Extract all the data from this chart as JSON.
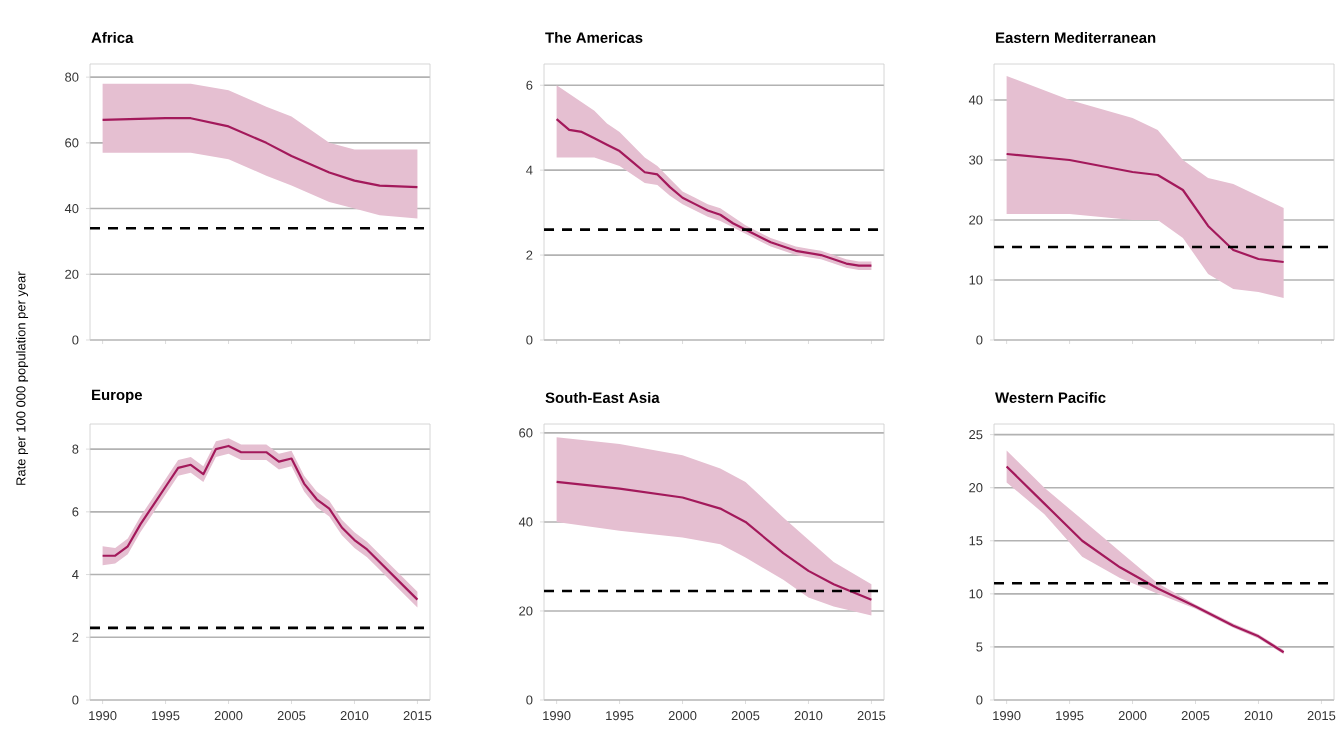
{
  "chart_data": [
    {
      "type": "line",
      "title": "Africa",
      "ylabel": "Rate per 100 000 population per year",
      "xlim": [
        1989,
        2016
      ],
      "xticks": [
        1990,
        1995,
        2000,
        2005,
        2010,
        2015
      ],
      "ylim": [
        0,
        84
      ],
      "yticks": [
        0,
        20,
        40,
        60,
        80
      ],
      "grid": "y",
      "tick_labels": "y",
      "series": [
        {
          "color": "#a3195b",
          "x": [
            1990,
            1995,
            1997,
            2000,
            2003,
            2005,
            2008,
            2010,
            2012,
            2015
          ],
          "values": [
            67,
            67.5,
            67.5,
            65,
            60,
            56,
            51,
            48.5,
            47,
            46.5
          ],
          "lower": [
            57,
            57,
            57,
            55,
            50,
            47,
            42,
            40,
            38,
            37
          ],
          "upper": [
            78,
            78,
            78,
            76,
            71,
            68,
            60,
            58,
            58,
            58
          ]
        }
      ],
      "ref_lines": [
        {
          "axis": "y",
          "value": 34,
          "color": "#000000",
          "line_style": "dashed"
        }
      ]
    },
    {
      "type": "line",
      "title": "The Americas",
      "xlim": [
        1989,
        2016
      ],
      "xticks": [
        1990,
        1995,
        2000,
        2005,
        2010,
        2015
      ],
      "ylim": [
        0,
        6.5
      ],
      "yticks": [
        0,
        2,
        4,
        6
      ],
      "grid": "y",
      "tick_labels": "y",
      "series": [
        {
          "color": "#a3195b",
          "x": [
            1990,
            1991,
            1992,
            1993,
            1994,
            1995,
            1996,
            1997,
            1998,
            1999,
            2000,
            2001,
            2002,
            2003,
            2004,
            2005,
            2006,
            2007,
            2008,
            2009,
            2010,
            2011,
            2012,
            2013,
            2014,
            2015
          ],
          "values": [
            5.2,
            4.95,
            4.9,
            4.75,
            4.6,
            4.45,
            4.2,
            3.95,
            3.9,
            3.6,
            3.35,
            3.2,
            3.05,
            2.95,
            2.75,
            2.6,
            2.45,
            2.3,
            2.2,
            2.1,
            2.05,
            2.0,
            1.9,
            1.8,
            1.75,
            1.75
          ],
          "lower": [
            4.3,
            4.3,
            4.3,
            4.3,
            4.2,
            4.1,
            3.9,
            3.7,
            3.65,
            3.4,
            3.2,
            3.05,
            2.9,
            2.8,
            2.65,
            2.5,
            2.35,
            2.2,
            2.1,
            2.0,
            1.95,
            1.9,
            1.8,
            1.7,
            1.65,
            1.65
          ],
          "upper": [
            6.0,
            5.8,
            5.6,
            5.4,
            5.1,
            4.9,
            4.6,
            4.3,
            4.1,
            3.8,
            3.5,
            3.35,
            3.2,
            3.1,
            2.9,
            2.7,
            2.55,
            2.4,
            2.3,
            2.2,
            2.15,
            2.1,
            2.0,
            1.9,
            1.85,
            1.85
          ]
        }
      ],
      "ref_lines": [
        {
          "axis": "y",
          "value": 2.6,
          "color": "#000000",
          "line_style": "dashed"
        }
      ]
    },
    {
      "type": "line",
      "title": "Eastern Mediterranean",
      "xlim": [
        1989,
        2016
      ],
      "xticks": [
        1990,
        1995,
        2000,
        2005,
        2010,
        2015
      ],
      "ylim": [
        0,
        46
      ],
      "yticks": [
        0,
        10,
        20,
        30,
        40
      ],
      "grid": "y",
      "tick_labels": "y",
      "series": [
        {
          "color": "#a3195b",
          "x": [
            1990,
            1995,
            2000,
            2002,
            2004,
            2006,
            2008,
            2010,
            2012
          ],
          "values": [
            31,
            30,
            28,
            27.5,
            25,
            19,
            15,
            13.5,
            13
          ],
          "lower": [
            21,
            21,
            20,
            20,
            17,
            11,
            8.5,
            8,
            7
          ],
          "upper": [
            44,
            40,
            37,
            35,
            30,
            27,
            26,
            24,
            22
          ]
        }
      ],
      "ref_lines": [
        {
          "axis": "y",
          "value": 15.5,
          "color": "#000000",
          "line_style": "dashed"
        }
      ]
    },
    {
      "type": "line",
      "title": "Europe",
      "xlim": [
        1989,
        2016
      ],
      "xticks": [
        1990,
        1995,
        2000,
        2005,
        2010,
        2015
      ],
      "ylim": [
        0,
        8.8
      ],
      "yticks": [
        0,
        2,
        4,
        6,
        8
      ],
      "grid": "y",
      "series": [
        {
          "color": "#a3195b",
          "x": [
            1990,
            1991,
            1992,
            1993,
            1994,
            1995,
            1996,
            1997,
            1998,
            1999,
            2000,
            2001,
            2002,
            2003,
            2004,
            2005,
            2006,
            2007,
            2008,
            2009,
            2010,
            2011,
            2012,
            2013,
            2014,
            2015
          ],
          "values": [
            4.6,
            4.6,
            4.9,
            5.6,
            6.2,
            6.8,
            7.4,
            7.5,
            7.2,
            8.0,
            8.1,
            7.9,
            7.9,
            7.9,
            7.6,
            7.7,
            6.9,
            6.4,
            6.1,
            5.5,
            5.1,
            4.8,
            4.4,
            4.0,
            3.6,
            3.2
          ],
          "lower": [
            4.3,
            4.35,
            4.65,
            5.35,
            5.95,
            6.55,
            7.15,
            7.25,
            6.95,
            7.75,
            7.85,
            7.65,
            7.65,
            7.65,
            7.35,
            7.45,
            6.65,
            6.15,
            5.85,
            5.25,
            4.85,
            4.55,
            4.15,
            3.75,
            3.35,
            2.95
          ],
          "upper": [
            4.9,
            4.85,
            5.15,
            5.85,
            6.45,
            7.05,
            7.65,
            7.75,
            7.45,
            8.25,
            8.35,
            8.15,
            8.15,
            8.15,
            7.85,
            7.95,
            7.15,
            6.65,
            6.35,
            5.75,
            5.35,
            5.05,
            4.65,
            4.25,
            3.85,
            3.45
          ]
        }
      ],
      "ref_lines": [
        {
          "axis": "y",
          "value": 2.3,
          "color": "#000000",
          "line_style": "dashed"
        }
      ]
    },
    {
      "type": "line",
      "title": "South-East Asia",
      "xlim": [
        1989,
        2016
      ],
      "xticks": [
        1990,
        1995,
        2000,
        2005,
        2010,
        2015
      ],
      "ylim": [
        0,
        62
      ],
      "yticks": [
        0,
        20,
        40,
        60
      ],
      "grid": "y",
      "series": [
        {
          "color": "#a3195b",
          "x": [
            1990,
            1995,
            2000,
            2003,
            2005,
            2008,
            2010,
            2012,
            2015
          ],
          "values": [
            49,
            47.5,
            45.5,
            43,
            40,
            33,
            29,
            26,
            22.5
          ],
          "lower": [
            40,
            38,
            36.5,
            35,
            32,
            27,
            23,
            21,
            19
          ],
          "upper": [
            59,
            57.5,
            55,
            52,
            49,
            41,
            36,
            31,
            26
          ]
        }
      ],
      "ref_lines": [
        {
          "axis": "y",
          "value": 24.5,
          "color": "#000000",
          "line_style": "dashed"
        }
      ]
    },
    {
      "type": "line",
      "title": "Western Pacific",
      "xlim": [
        1989,
        2016
      ],
      "xticks": [
        1990,
        1995,
        2000,
        2005,
        2010,
        2015
      ],
      "ylim": [
        0,
        26
      ],
      "yticks": [
        0,
        5,
        10,
        15,
        20,
        25
      ],
      "grid": "y",
      "series": [
        {
          "color": "#a3195b",
          "x": [
            1990,
            1993,
            1996,
            1999,
            2002,
            2005,
            2008,
            2010,
            2012
          ],
          "values": [
            22,
            18.5,
            15,
            12.5,
            10.5,
            8.8,
            7.0,
            6.0,
            4.5
          ],
          "lower": [
            20.5,
            17.5,
            13.5,
            11.5,
            10,
            8.6,
            6.8,
            5.8,
            4.3
          ],
          "upper": [
            23.5,
            20,
            17,
            14,
            11,
            9,
            7.2,
            6.2,
            4.7
          ]
        }
      ],
      "ref_lines": [
        {
          "axis": "y",
          "value": 11,
          "color": "#000000",
          "line_style": "dashed"
        }
      ]
    }
  ]
}
